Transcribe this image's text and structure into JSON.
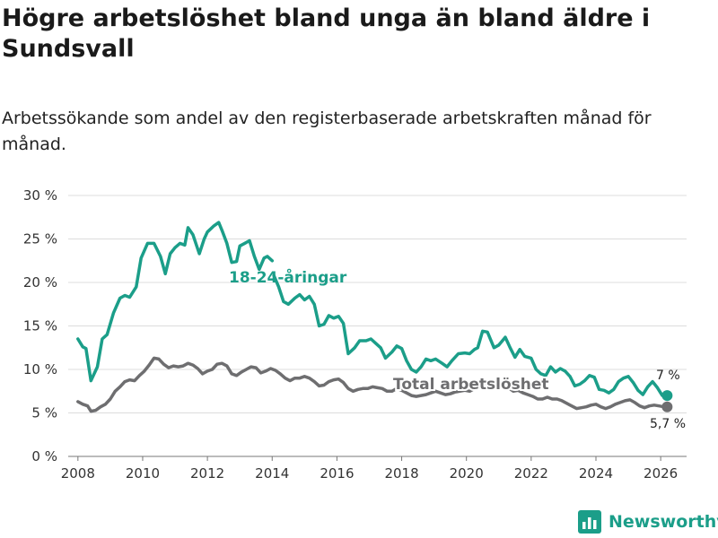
{
  "chart_data": {
    "type": "line",
    "title": "Högre arbetslöshet bland unga än bland äldre i Sundsvall",
    "subtitle": "Arbetssökande som andel av den registerbaserade arbetskraften månad för månad.",
    "xlabel": "",
    "ylabel": "",
    "xlim": [
      2007.7,
      2026.8
    ],
    "ylim": [
      0,
      30
    ],
    "x_ticks": [
      2008,
      2010,
      2012,
      2014,
      2016,
      2018,
      2020,
      2022,
      2024,
      2026
    ],
    "y_ticks": [
      {
        "value": 0,
        "label": "0 %"
      },
      {
        "value": 5,
        "label": "5 %"
      },
      {
        "value": 10,
        "label": "10 %"
      },
      {
        "value": 15,
        "label": "15 %"
      },
      {
        "value": 20,
        "label": "20 %"
      },
      {
        "value": 25,
        "label": "25 %"
      },
      {
        "value": 30,
        "label": "30 %"
      }
    ],
    "grid": true,
    "series": [
      {
        "name": "18-24-åringar",
        "color": "#1b9e89",
        "end_label": "7 %",
        "points": [
          [
            2008.0,
            13.5
          ],
          [
            2008.15,
            12.6
          ],
          [
            2008.25,
            12.4
          ],
          [
            2008.4,
            8.7
          ],
          [
            2008.6,
            10.3
          ],
          [
            2008.75,
            13.5
          ],
          [
            2008.9,
            14.0
          ],
          [
            2009.1,
            16.5
          ],
          [
            2009.3,
            18.2
          ],
          [
            2009.45,
            18.5
          ],
          [
            2009.6,
            18.3
          ],
          [
            2009.8,
            19.5
          ],
          [
            2009.95,
            22.8
          ],
          [
            2010.15,
            24.5
          ],
          [
            2010.35,
            24.5
          ],
          [
            2010.55,
            23.0
          ],
          [
            2010.7,
            21.0
          ],
          [
            2010.85,
            23.3
          ],
          [
            2011.0,
            24.0
          ],
          [
            2011.15,
            24.5
          ],
          [
            2011.3,
            24.3
          ],
          [
            2011.4,
            26.3
          ],
          [
            2011.55,
            25.5
          ],
          [
            2011.75,
            23.3
          ],
          [
            2011.9,
            25.0
          ],
          [
            2012.0,
            25.8
          ],
          [
            2012.2,
            26.5
          ],
          [
            2012.35,
            26.9
          ],
          [
            2012.45,
            26.0
          ],
          [
            2012.6,
            24.5
          ],
          [
            2012.75,
            22.3
          ],
          [
            2012.9,
            22.4
          ],
          [
            2013.0,
            24.2
          ],
          [
            2013.15,
            24.5
          ],
          [
            2013.3,
            24.8
          ],
          [
            2013.45,
            23.0
          ],
          [
            2013.6,
            21.5
          ],
          [
            2013.75,
            22.8
          ],
          [
            2013.85,
            23.0
          ],
          [
            2014.0,
            22.5
          ]
        ],
        "points_2": [
          [
            2014.05,
            20.8
          ],
          [
            2014.2,
            19.5
          ],
          [
            2014.35,
            17.8
          ],
          [
            2014.5,
            17.5
          ],
          [
            2014.7,
            18.2
          ],
          [
            2014.85,
            18.6
          ],
          [
            2015.0,
            18.0
          ],
          [
            2015.15,
            18.4
          ],
          [
            2015.3,
            17.5
          ],
          [
            2015.45,
            15.0
          ],
          [
            2015.6,
            15.2
          ],
          [
            2015.75,
            16.2
          ],
          [
            2015.9,
            15.9
          ],
          [
            2016.05,
            16.1
          ],
          [
            2016.2,
            15.3
          ],
          [
            2016.35,
            11.8
          ],
          [
            2016.55,
            12.5
          ],
          [
            2016.7,
            13.3
          ],
          [
            2016.9,
            13.3
          ],
          [
            2017.05,
            13.5
          ],
          [
            2017.2,
            13.0
          ],
          [
            2017.35,
            12.5
          ],
          [
            2017.5,
            11.3
          ],
          [
            2017.7,
            12.0
          ],
          [
            2017.85,
            12.7
          ],
          [
            2018.0,
            12.4
          ],
          [
            2018.15,
            11.0
          ],
          [
            2018.3,
            10.0
          ],
          [
            2018.45,
            9.7
          ],
          [
            2018.6,
            10.3
          ],
          [
            2018.75,
            11.2
          ],
          [
            2018.9,
            11.0
          ],
          [
            2019.05,
            11.2
          ],
          [
            2019.25,
            10.7
          ],
          [
            2019.4,
            10.3
          ],
          [
            2019.55,
            11.0
          ],
          [
            2019.75,
            11.8
          ],
          [
            2019.95,
            11.9
          ],
          [
            2020.1,
            11.8
          ],
          [
            2020.25,
            12.3
          ],
          [
            2020.35,
            12.5
          ],
          [
            2020.5,
            14.4
          ],
          [
            2020.65,
            14.3
          ],
          [
            2020.85,
            12.5
          ],
          [
            2021.0,
            12.8
          ],
          [
            2021.2,
            13.7
          ],
          [
            2021.35,
            12.5
          ],
          [
            2021.5,
            11.4
          ],
          [
            2021.65,
            12.3
          ],
          [
            2021.8,
            11.5
          ],
          [
            2022.0,
            11.3
          ],
          [
            2022.15,
            10.0
          ],
          [
            2022.3,
            9.5
          ],
          [
            2022.45,
            9.3
          ],
          [
            2022.6,
            10.3
          ],
          [
            2022.75,
            9.7
          ],
          [
            2022.9,
            10.1
          ],
          [
            2023.05,
            9.8
          ],
          [
            2023.2,
            9.2
          ],
          [
            2023.35,
            8.1
          ],
          [
            2023.5,
            8.3
          ],
          [
            2023.65,
            8.7
          ],
          [
            2023.8,
            9.3
          ],
          [
            2023.95,
            9.1
          ],
          [
            2024.1,
            7.7
          ],
          [
            2024.25,
            7.6
          ],
          [
            2024.4,
            7.3
          ],
          [
            2024.55,
            7.7
          ],
          [
            2024.7,
            8.6
          ],
          [
            2024.85,
            9.0
          ],
          [
            2025.0,
            9.2
          ],
          [
            2025.15,
            8.5
          ],
          [
            2025.3,
            7.6
          ],
          [
            2025.45,
            7.1
          ],
          [
            2025.6,
            8.0
          ],
          [
            2025.75,
            8.6
          ],
          [
            2025.9,
            7.9
          ],
          [
            2026.05,
            7.0
          ],
          [
            2026.2,
            7.0
          ]
        ]
      },
      {
        "name": "Total arbetslöshet",
        "color": "#6e6e70",
        "end_label": "5,7 %",
        "points": [
          [
            2008.0,
            6.3
          ],
          [
            2008.15,
            6.0
          ],
          [
            2008.3,
            5.8
          ],
          [
            2008.4,
            5.2
          ],
          [
            2008.55,
            5.3
          ],
          [
            2008.7,
            5.7
          ],
          [
            2008.85,
            6.0
          ],
          [
            2009.0,
            6.6
          ],
          [
            2009.15,
            7.5
          ],
          [
            2009.3,
            8.0
          ],
          [
            2009.45,
            8.6
          ],
          [
            2009.6,
            8.8
          ],
          [
            2009.75,
            8.7
          ],
          [
            2009.9,
            9.3
          ],
          [
            2010.05,
            9.8
          ],
          [
            2010.2,
            10.5
          ],
          [
            2010.35,
            11.3
          ],
          [
            2010.5,
            11.2
          ],
          [
            2010.65,
            10.6
          ],
          [
            2010.8,
            10.2
          ],
          [
            2010.95,
            10.4
          ],
          [
            2011.1,
            10.3
          ],
          [
            2011.25,
            10.4
          ],
          [
            2011.4,
            10.7
          ],
          [
            2011.55,
            10.5
          ],
          [
            2011.7,
            10.1
          ],
          [
            2011.85,
            9.5
          ],
          [
            2012.0,
            9.8
          ],
          [
            2012.15,
            10.0
          ],
          [
            2012.3,
            10.6
          ],
          [
            2012.45,
            10.7
          ],
          [
            2012.6,
            10.4
          ],
          [
            2012.75,
            9.5
          ],
          [
            2012.9,
            9.3
          ],
          [
            2013.05,
            9.7
          ],
          [
            2013.2,
            10.0
          ],
          [
            2013.35,
            10.3
          ],
          [
            2013.5,
            10.2
          ],
          [
            2013.65,
            9.6
          ],
          [
            2013.8,
            9.8
          ],
          [
            2013.95,
            10.1
          ],
          [
            2014.1,
            9.9
          ],
          [
            2014.25,
            9.5
          ],
          [
            2014.4,
            9.0
          ],
          [
            2014.55,
            8.7
          ],
          [
            2014.7,
            9.0
          ],
          [
            2014.85,
            9.0
          ],
          [
            2015.0,
            9.2
          ],
          [
            2015.15,
            9.0
          ],
          [
            2015.3,
            8.6
          ],
          [
            2015.45,
            8.1
          ],
          [
            2015.6,
            8.2
          ],
          [
            2015.75,
            8.6
          ],
          [
            2015.9,
            8.8
          ],
          [
            2016.05,
            8.9
          ],
          [
            2016.2,
            8.5
          ],
          [
            2016.35,
            7.8
          ],
          [
            2016.5,
            7.5
          ],
          [
            2016.65,
            7.7
          ],
          [
            2016.8,
            7.8
          ],
          [
            2016.95,
            7.8
          ],
          [
            2017.1,
            8.0
          ],
          [
            2017.25,
            7.9
          ],
          [
            2017.4,
            7.8
          ],
          [
            2017.55,
            7.5
          ],
          [
            2017.7,
            7.5
          ],
          [
            2017.85,
            7.8
          ],
          [
            2018.0,
            7.6
          ],
          [
            2018.15,
            7.3
          ],
          [
            2018.3,
            7.0
          ],
          [
            2018.45,
            6.9
          ],
          [
            2018.6,
            7.0
          ],
          [
            2018.75,
            7.1
          ],
          [
            2018.9,
            7.3
          ],
          [
            2019.05,
            7.5
          ],
          [
            2019.2,
            7.3
          ],
          [
            2019.35,
            7.1
          ],
          [
            2019.5,
            7.2
          ],
          [
            2019.65,
            7.4
          ],
          [
            2019.8,
            7.5
          ],
          [
            2019.95,
            7.6
          ],
          [
            2020.1,
            7.5
          ],
          [
            2020.25,
            7.8
          ],
          [
            2020.4,
            8.2
          ],
          [
            2020.55,
            8.5
          ],
          [
            2020.7,
            8.3
          ],
          [
            2020.85,
            8.1
          ],
          [
            2021.0,
            8.3
          ],
          [
            2021.15,
            8.4
          ],
          [
            2021.3,
            7.9
          ],
          [
            2021.45,
            7.5
          ],
          [
            2021.6,
            7.6
          ],
          [
            2021.75,
            7.3
          ],
          [
            2021.9,
            7.1
          ],
          [
            2022.05,
            6.9
          ],
          [
            2022.2,
            6.6
          ],
          [
            2022.35,
            6.6
          ],
          [
            2022.5,
            6.8
          ],
          [
            2022.65,
            6.6
          ],
          [
            2022.8,
            6.6
          ],
          [
            2022.95,
            6.4
          ],
          [
            2023.1,
            6.1
          ],
          [
            2023.25,
            5.8
          ],
          [
            2023.4,
            5.5
          ],
          [
            2023.55,
            5.6
          ],
          [
            2023.7,
            5.7
          ],
          [
            2023.85,
            5.9
          ],
          [
            2024.0,
            6.0
          ],
          [
            2024.15,
            5.7
          ],
          [
            2024.3,
            5.5
          ],
          [
            2024.45,
            5.7
          ],
          [
            2024.6,
            6.0
          ],
          [
            2024.75,
            6.2
          ],
          [
            2024.9,
            6.4
          ],
          [
            2025.05,
            6.5
          ],
          [
            2025.2,
            6.2
          ],
          [
            2025.35,
            5.8
          ],
          [
            2025.5,
            5.6
          ],
          [
            2025.65,
            5.8
          ],
          [
            2025.8,
            5.9
          ],
          [
            2025.95,
            5.8
          ],
          [
            2026.1,
            5.7
          ],
          [
            2026.2,
            5.7
          ]
        ]
      }
    ]
  },
  "brand": {
    "name": "Newsworthy",
    "color": "#1b9e89",
    "icon": "bar-chart-logo-icon"
  }
}
